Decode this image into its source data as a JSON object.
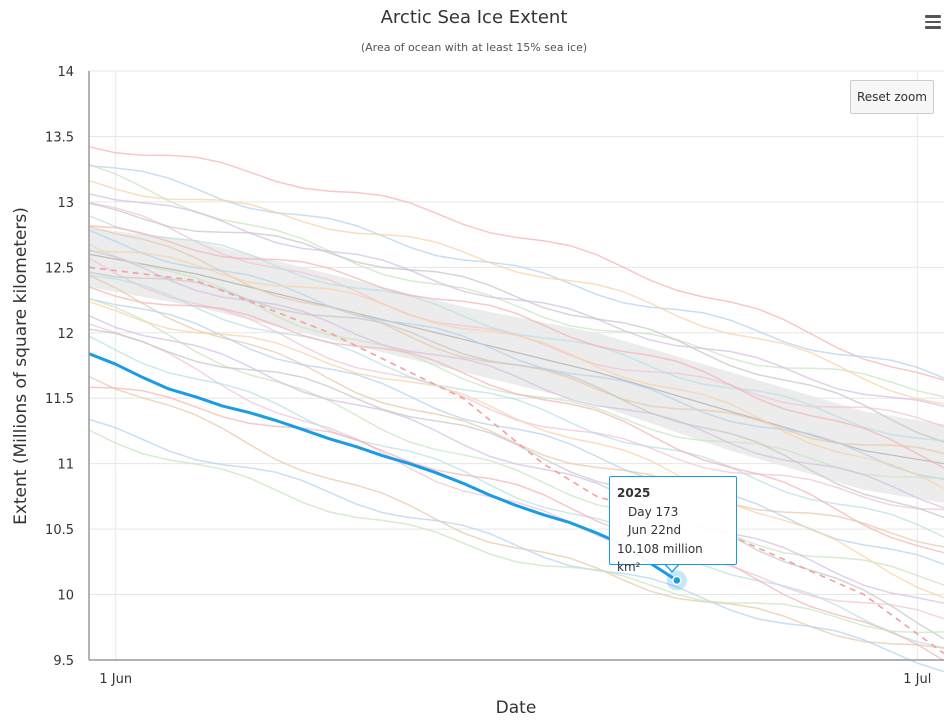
{
  "chart_data": {
    "type": "line",
    "title": "Arctic Sea Ice Extent",
    "subtitle": "(Area of ocean with at least 15% sea ice)",
    "xlabel": "Date",
    "ylabel": "Extent (Millions of square kilometers)",
    "x_ticks": [
      {
        "label": "1 Jun",
        "day": 152
      },
      {
        "label": "1 Jul",
        "day": 182
      }
    ],
    "xlim": [
      151,
      183
    ],
    "ylim": [
      9.5,
      14
    ],
    "y_ticks": [
      "9.5",
      "10",
      "10.5",
      "11",
      "11.5",
      "12",
      "12.5",
      "13",
      "13.5",
      "14"
    ],
    "grid": true,
    "colors": {
      "highlight": "#1a9be8",
      "band": "#e9e9e9",
      "history": [
        "#f4b6b6",
        "#b5d3ef",
        "#c9e6c0",
        "#f8d3a8",
        "#d7c0e6",
        "#f2c4d8",
        "#c8c8c8",
        "#b9e0e6",
        "#e8c9a8"
      ]
    },
    "band": {
      "description_visible": false,
      "upper": [
        [
          151,
          12.8
        ],
        [
          155,
          12.7
        ],
        [
          160,
          12.45
        ],
        [
          165,
          12.2
        ],
        [
          170,
          12.0
        ],
        [
          175,
          11.7
        ],
        [
          180,
          11.4
        ],
        [
          183,
          11.3
        ]
      ],
      "lower": [
        [
          151,
          12.35
        ],
        [
          155,
          12.2
        ],
        [
          160,
          11.95
        ],
        [
          165,
          11.7
        ],
        [
          170,
          11.45
        ],
        [
          175,
          11.1
        ],
        [
          180,
          10.8
        ],
        [
          183,
          10.7
        ]
      ],
      "median": [
        [
          151,
          12.6
        ],
        [
          155,
          12.45
        ],
        [
          160,
          12.2
        ],
        [
          165,
          11.95
        ],
        [
          170,
          11.7
        ],
        [
          175,
          11.4
        ],
        [
          180,
          11.1
        ],
        [
          183,
          11.0
        ]
      ]
    },
    "history_series": [
      {
        "start": 13.45,
        "end": 11.6
      },
      {
        "start": 13.3,
        "end": 11.65
      },
      {
        "start": 13.25,
        "end": 11.55
      },
      {
        "start": 13.15,
        "end": 11.45
      },
      {
        "start": 13.1,
        "end": 11.4
      },
      {
        "start": 13.0,
        "end": 11.3
      },
      {
        "start": 12.95,
        "end": 11.2
      },
      {
        "start": 12.9,
        "end": 11.15
      },
      {
        "start": 12.85,
        "end": 11.05
      },
      {
        "start": 12.8,
        "end": 11.0
      },
      {
        "start": 12.75,
        "end": 10.9
      },
      {
        "start": 12.7,
        "end": 10.85
      },
      {
        "start": 12.65,
        "end": 10.8
      },
      {
        "start": 12.6,
        "end": 10.7
      },
      {
        "start": 12.55,
        "end": 10.65
      },
      {
        "start": 12.5,
        "end": 10.55
      },
      {
        "start": 12.45,
        "end": 10.45
      },
      {
        "start": 12.4,
        "end": 10.4
      },
      {
        "start": 12.35,
        "end": 10.3
      },
      {
        "start": 12.3,
        "end": 10.2
      },
      {
        "start": 12.25,
        "end": 10.1
      },
      {
        "start": 12.2,
        "end": 10.0
      },
      {
        "start": 12.15,
        "end": 9.9
      },
      {
        "start": 12.1,
        "end": 9.8
      },
      {
        "start": 12.0,
        "end": 9.7
      },
      {
        "start": 11.95,
        "end": 9.6
      },
      {
        "start": 11.7,
        "end": 9.55
      },
      {
        "start": 11.6,
        "end": 9.5
      },
      {
        "start": 11.3,
        "end": 9.45
      },
      {
        "start": 11.25,
        "end": 9.7
      }
    ],
    "dashed_series": [
      [
        151,
        12.5
      ],
      [
        155,
        12.4
      ],
      [
        160,
        12.0
      ],
      [
        165,
        11.5
      ],
      [
        168,
        11.0
      ],
      [
        170,
        10.75
      ],
      [
        175,
        10.45
      ],
      [
        180,
        10.0
      ],
      [
        183,
        9.55
      ]
    ],
    "series": [
      {
        "name": "2025",
        "points": [
          [
            152,
            11.76
          ],
          [
            153,
            11.66
          ],
          [
            154,
            11.57
          ],
          [
            155,
            11.51
          ],
          [
            156,
            11.44
          ],
          [
            157,
            11.39
          ],
          [
            158,
            11.33
          ],
          [
            159,
            11.26
          ],
          [
            160,
            11.19
          ],
          [
            161,
            11.13
          ],
          [
            162,
            11.06
          ],
          [
            163,
            11.0
          ],
          [
            164,
            10.93
          ],
          [
            165,
            10.85
          ],
          [
            166,
            10.76
          ],
          [
            167,
            10.68
          ],
          [
            168,
            10.61
          ],
          [
            169,
            10.55
          ],
          [
            170,
            10.47
          ],
          [
            171,
            10.38
          ],
          [
            172,
            10.24
          ],
          [
            173,
            10.108
          ]
        ],
        "start_value": 11.84
      }
    ],
    "tooltip": {
      "series": "2025",
      "day_label": "Day 173",
      "date_label": "Jun 22nd",
      "value_label": "10.108 million km²",
      "day": 173,
      "value": 10.108
    }
  },
  "controls": {
    "reset_zoom_label": "Reset zoom",
    "menu_icon": "hamburger-menu-icon"
  }
}
